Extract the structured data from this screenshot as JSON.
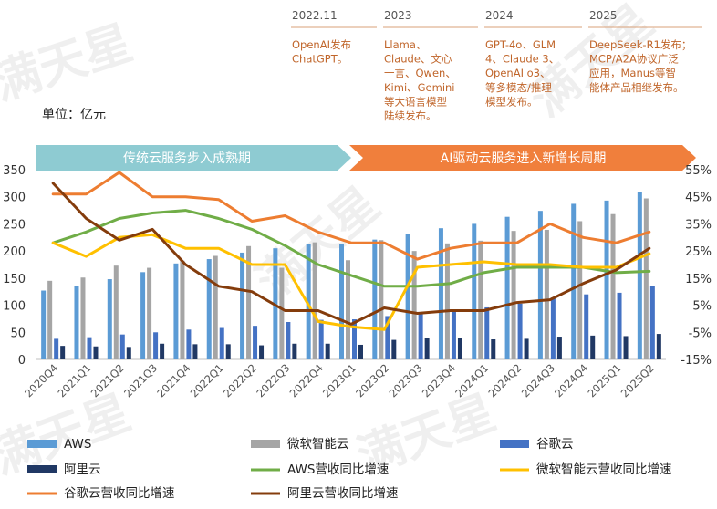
{
  "unit_label": "单位：亿元",
  "timeline": [
    {
      "year": "2022.11",
      "lines": [
        "OpenAI发布",
        "ChatGPT。"
      ]
    },
    {
      "year": "2023",
      "lines": [
        "Llama、",
        "Claude、文心",
        "一言、Qwen、",
        "Kimi、Gemini",
        "等大语言模型",
        "陆续发布。"
      ]
    },
    {
      "year": "2024",
      "lines": [
        "GPT-4o、GLM",
        "4、Claude 3、",
        "OpenAI o3、",
        "等多模态/推理",
        "模型发布。"
      ]
    },
    {
      "year": "2025",
      "lines": [
        "DeepSeek-R1发布；",
        "MCP/A2A协议广泛",
        "应用，Manus等智",
        "能体产品相继发布。"
      ]
    }
  ],
  "phases": [
    {
      "label": "传统云服务步入成熟期",
      "color": "#8ecbd2"
    },
    {
      "label": "AI驱动云服务进入新增长周期",
      "color": "#f07f3c"
    }
  ],
  "watermark": "满天星",
  "chart_data": {
    "type": "bar+line",
    "categories": [
      "2020Q4",
      "2021Q1",
      "2021Q2",
      "2021Q3",
      "2021Q4",
      "2022Q1",
      "2022Q2",
      "2022Q3",
      "2022Q4",
      "2023Q1",
      "2023Q2",
      "2023Q3",
      "2023Q4",
      "2024Q1",
      "2024Q2",
      "2024Q3",
      "2024Q4",
      "2025Q1",
      "2025Q2"
    ],
    "ylim_left": [
      0,
      350
    ],
    "yticks_left": [
      "0",
      "50",
      "100",
      "150",
      "200",
      "250",
      "300",
      "350"
    ],
    "ylim_right": [
      -15,
      55
    ],
    "yticks_right": [
      "-15%",
      "-5%",
      "5%",
      "15%",
      "25%",
      "35%",
      "45%",
      "55%"
    ],
    "bar_series": [
      {
        "name": "AWS",
        "color": "#5b9bd5",
        "values": [
          127,
          135,
          148,
          161,
          177,
          185,
          197,
          205,
          213,
          213,
          221,
          231,
          242,
          250,
          263,
          274,
          287,
          293,
          309
        ]
      },
      {
        "name": "微软智能云",
        "color": "#a5a5a5",
        "values": [
          145,
          151,
          173,
          169,
          182,
          191,
          209,
          169,
          216,
          183,
          220,
          200,
          214,
          219,
          237,
          239,
          255,
          268,
          297
        ]
      },
      {
        "name": "谷歌云",
        "color": "#4472c4",
        "values": [
          38,
          41,
          46,
          50,
          55,
          58,
          62,
          69,
          73,
          74,
          80,
          84,
          92,
          96,
          103,
          114,
          120,
          123,
          136
        ]
      },
      {
        "name": "阿里云",
        "color": "#203864",
        "values": [
          25,
          24,
          23,
          29,
          28,
          28,
          26,
          29,
          29,
          27,
          36,
          39,
          40,
          37,
          38,
          42,
          44,
          43,
          47
        ]
      }
    ],
    "line_series": [
      {
        "name": "AWS营收同比增速",
        "color": "#70ad47",
        "values": [
          28,
          32,
          37,
          39,
          40,
          37,
          33,
          27,
          20,
          16,
          12,
          12,
          13,
          17,
          19,
          19,
          19,
          17,
          17.5
        ]
      },
      {
        "name": "微软智能云营收同比增速",
        "color": "#ffc000",
        "values": [
          28,
          23,
          30,
          31,
          26,
          26,
          20,
          20,
          -1,
          -3,
          -4,
          19,
          20,
          21,
          20,
          20,
          19,
          19,
          24
        ]
      },
      {
        "name": "谷歌云营收同比增速",
        "color": "#ed7d31",
        "values": [
          46,
          46,
          54,
          45,
          45,
          44,
          36,
          38,
          32,
          28,
          28,
          22,
          26,
          28,
          28,
          35,
          30,
          28,
          32
        ]
      },
      {
        "name": "阿里云营收同比增速",
        "color": "#843c0c",
        "values": [
          50,
          37,
          29,
          33,
          20,
          12,
          10,
          3,
          3,
          -2,
          4,
          2,
          3,
          3,
          6,
          7,
          13,
          18,
          26
        ]
      }
    ],
    "legend": [
      {
        "name": "AWS",
        "kind": "bar",
        "color": "#5b9bd5"
      },
      {
        "name": "微软智能云",
        "kind": "bar",
        "color": "#a5a5a5"
      },
      {
        "name": "谷歌云",
        "kind": "bar",
        "color": "#4472c4"
      },
      {
        "name": "阿里云",
        "kind": "bar",
        "color": "#203864"
      },
      {
        "name": "AWS营收同比增速",
        "kind": "line",
        "color": "#70ad47"
      },
      {
        "name": "微软智能云营收同比增速",
        "kind": "line",
        "color": "#ffc000"
      },
      {
        "name": "谷歌云营收同比增速",
        "kind": "line",
        "color": "#ed7d31"
      },
      {
        "name": "阿里云营收同比增速",
        "kind": "line",
        "color": "#843c0c"
      }
    ],
    "legend_position": "bottom",
    "grid": false
  }
}
